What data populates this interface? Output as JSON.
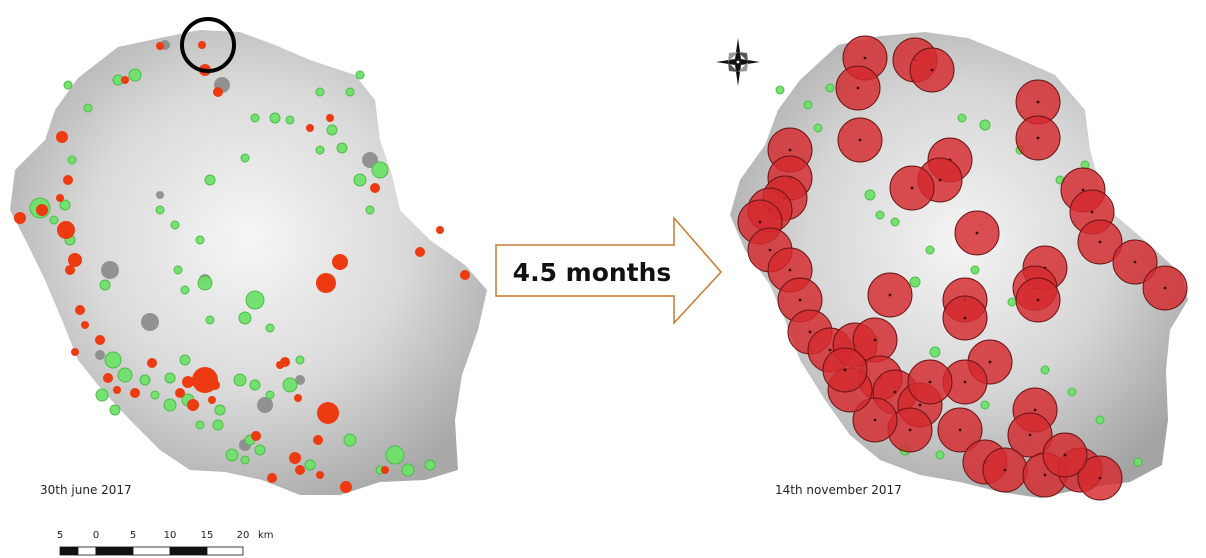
{
  "colors": {
    "red_marker": "#ee3a10",
    "green_marker": "#6fe06a",
    "gray_marker": "#8a8a8a",
    "buffer_fill": "#d42a2e",
    "buffer_stroke": "#6a1416",
    "arrow_stroke": "#c9792f",
    "highlight_ring": "#000000"
  },
  "left_panel": {
    "date_label": "30th june 2017"
  },
  "right_panel": {
    "date_label": "14th november 2017"
  },
  "transition_arrow": {
    "label": "4.5 months"
  },
  "scale_bar": {
    "unit": "km",
    "ticks": [
      "5",
      "0",
      "5",
      "10",
      "15",
      "20"
    ]
  },
  "icons": {
    "compass": "compass-rose-icon"
  }
}
